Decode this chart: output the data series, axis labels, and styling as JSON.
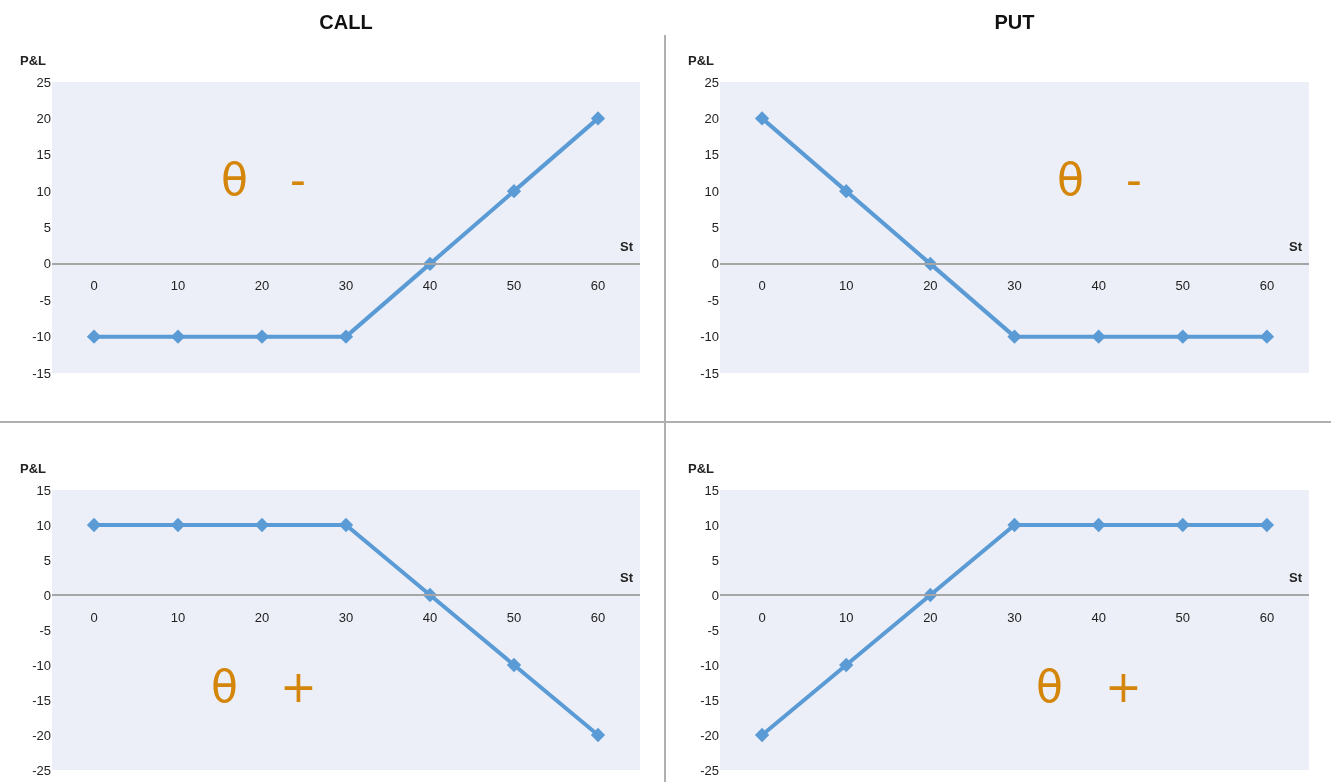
{
  "chart_data": [
    {
      "type": "line",
      "title": "CALL",
      "xlabel": "St",
      "ylabel": "P&L",
      "x": [
        0,
        10,
        20,
        30,
        40,
        50,
        60
      ],
      "values": [
        -10,
        -10,
        -10,
        -10,
        0,
        10,
        20
      ],
      "color": "#5b9bd5",
      "marker": "diamond",
      "line_style": "solid",
      "xlim": [
        -5,
        65
      ],
      "xticks": [
        0,
        10,
        20,
        30,
        40,
        50,
        60
      ],
      "ylim": [
        -15,
        25
      ],
      "yticks": [
        -15,
        -10,
        -5,
        0,
        5,
        10,
        15,
        20,
        25
      ],
      "annotations": [
        "θ -"
      ]
    },
    {
      "type": "line",
      "title": "PUT",
      "xlabel": "St",
      "ylabel": "P&L",
      "x": [
        0,
        10,
        20,
        30,
        40,
        50,
        60
      ],
      "values": [
        20,
        10,
        0,
        -10,
        -10,
        -10,
        -10
      ],
      "color": "#5b9bd5",
      "marker": "diamond",
      "line_style": "solid",
      "xlim": [
        -5,
        65
      ],
      "xticks": [
        0,
        10,
        20,
        30,
        40,
        50,
        60
      ],
      "ylim": [
        -15,
        25
      ],
      "yticks": [
        -15,
        -10,
        -5,
        0,
        5,
        10,
        15,
        20,
        25
      ],
      "annotations": [
        "θ -"
      ]
    },
    {
      "type": "line",
      "xlabel": "St",
      "ylabel": "P&L",
      "x": [
        0,
        10,
        20,
        30,
        40,
        50,
        60
      ],
      "values": [
        10,
        10,
        10,
        10,
        0,
        -10,
        -20
      ],
      "color": "#5b9bd5",
      "marker": "diamond",
      "line_style": "solid",
      "xlim": [
        -5,
        65
      ],
      "xticks": [
        0,
        10,
        20,
        30,
        40,
        50,
        60
      ],
      "ylim": [
        -25,
        15
      ],
      "yticks": [
        -25,
        -20,
        -15,
        -10,
        -5,
        0,
        5,
        10,
        15
      ],
      "annotations": [
        "θ +"
      ]
    },
    {
      "type": "line",
      "xlabel": "St",
      "ylabel": "P&L",
      "x": [
        0,
        10,
        20,
        30,
        40,
        50,
        60
      ],
      "values": [
        -20,
        -10,
        0,
        10,
        10,
        10,
        10
      ],
      "color": "#5b9bd5",
      "marker": "diamond",
      "line_style": "solid",
      "xlim": [
        -5,
        65
      ],
      "xticks": [
        0,
        10,
        20,
        30,
        40,
        50,
        60
      ],
      "ylim": [
        -25,
        15
      ],
      "yticks": [
        -25,
        -20,
        -15,
        -10,
        -5,
        0,
        5,
        10,
        15
      ],
      "annotations": [
        "θ +"
      ]
    }
  ]
}
